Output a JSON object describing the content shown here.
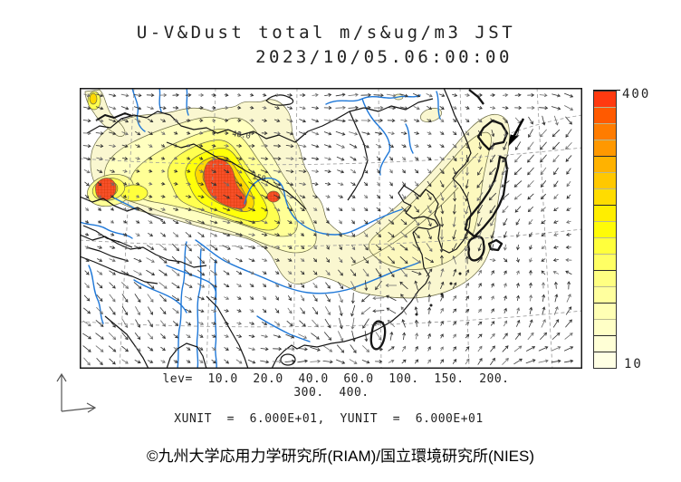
{
  "figure": {
    "title": "U-V&Dust total m/s&ug/m3 JST",
    "timestamp": "2023/10/05.06:00:00"
  },
  "chart_data": {
    "type": "contour-map",
    "title": "U-V&Dust total m/s&ug/m3 JST",
    "valid_time_jst": "2023/10/05.06:00:00",
    "shaded_variable": "Dust total (ug/m3)",
    "vector_variable": "U-V wind (m/s)",
    "contour_levels": [
      10.0,
      20.0,
      40.0,
      60.0,
      100,
      150,
      200,
      300,
      400
    ],
    "map_contour_labels": [
      "40.0",
      "150."
    ],
    "colorbar": {
      "max_label": "400",
      "min_label": "10",
      "colors_top_to_bottom": [
        "#FF3A10",
        "#FF5A00",
        "#FF7C00",
        "#FF9800",
        "#FFB200",
        "#FFC800",
        "#FFDC00",
        "#FFEE00",
        "#FFFB08",
        "#FFFF3C",
        "#FFFF64",
        "#FFFF82",
        "#FFFF9E",
        "#FFFFB4",
        "#FFFFC6",
        "#FFFFD6",
        "#FFFFE4"
      ],
      "dark_divider_after_top_index": [
        3,
        6,
        10,
        12,
        14,
        15
      ]
    },
    "legend": {
      "lev_line1": "lev=  10.0  20.0  40.0  60.0  100.  150.  200.",
      "lev_line2": "300.  400.",
      "units_line": "XUNIT  =  6.000E+01,  YUNIT  =  6.000E+01"
    }
  },
  "footer": {
    "copyright": "©九州大学応用力学研究所(RIAM)/国立環境研究所(NIES)"
  },
  "palette": {
    "dust_red": "#F85028",
    "dust_orange": "#FFA800",
    "dust_deep_yellow": "#FFD800",
    "dust_yellow": "#FFFF0A",
    "dust_pale": "#FAF7D0",
    "river_blue": "#1F78D8",
    "coast_black": "#141414",
    "graticule_gray": "#999999"
  }
}
